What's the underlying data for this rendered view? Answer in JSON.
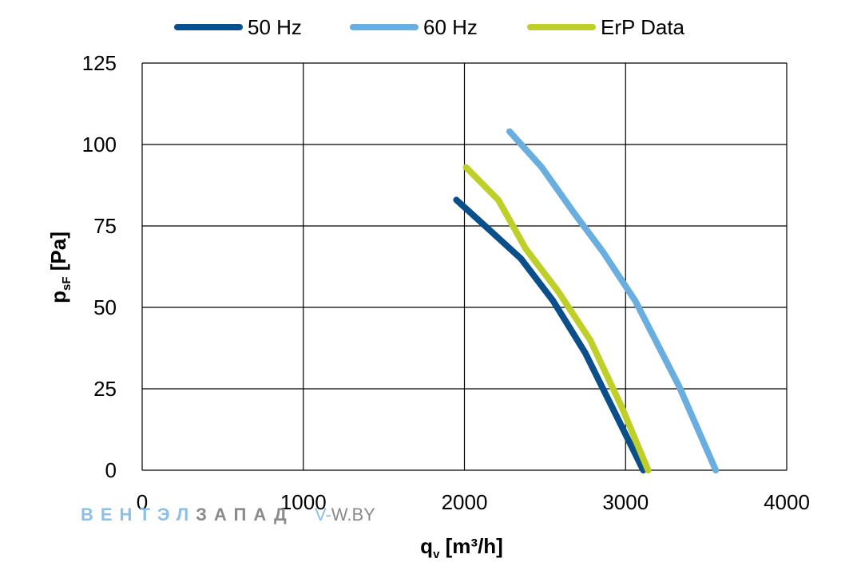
{
  "chart_data": {
    "type": "line",
    "xlabel": "q",
    "xlabel_sub": "v",
    "xlabel_unit": " [m³/h]",
    "ylabel": "p",
    "ylabel_sub": "sF",
    "ylabel_unit": " [Pa]",
    "xlim": [
      0,
      4000
    ],
    "ylim": [
      0,
      125
    ],
    "xticks": [
      0,
      1000,
      2000,
      3000,
      4000
    ],
    "yticks": [
      0,
      25,
      50,
      75,
      100,
      125
    ],
    "grid": true,
    "legend_position": "top",
    "series": [
      {
        "name": "50 Hz",
        "color": "#0b4f8a",
        "points": [
          [
            1950,
            83
          ],
          [
            2150,
            74
          ],
          [
            2350,
            65
          ],
          [
            2550,
            52
          ],
          [
            2750,
            36
          ],
          [
            2950,
            16
          ],
          [
            3110,
            0
          ]
        ]
      },
      {
        "name": "60 Hz",
        "color": "#6aaee0",
        "points": [
          [
            2280,
            104
          ],
          [
            2480,
            93
          ],
          [
            2680,
            79
          ],
          [
            2860,
            67
          ],
          [
            3060,
            52
          ],
          [
            3330,
            26
          ],
          [
            3560,
            0
          ]
        ]
      },
      {
        "name": "ErP Data",
        "color": "#bfcf2a",
        "points": [
          [
            2010,
            93
          ],
          [
            2210,
            83
          ],
          [
            2380,
            68
          ],
          [
            2580,
            55
          ],
          [
            2780,
            40
          ],
          [
            2980,
            19
          ],
          [
            3140,
            0
          ]
        ]
      }
    ]
  },
  "watermark": {
    "part1": "ВЕНТЭЛ",
    "part2": "ЗАПАД",
    "url_dash": "V-",
    "url": "W.BY"
  }
}
